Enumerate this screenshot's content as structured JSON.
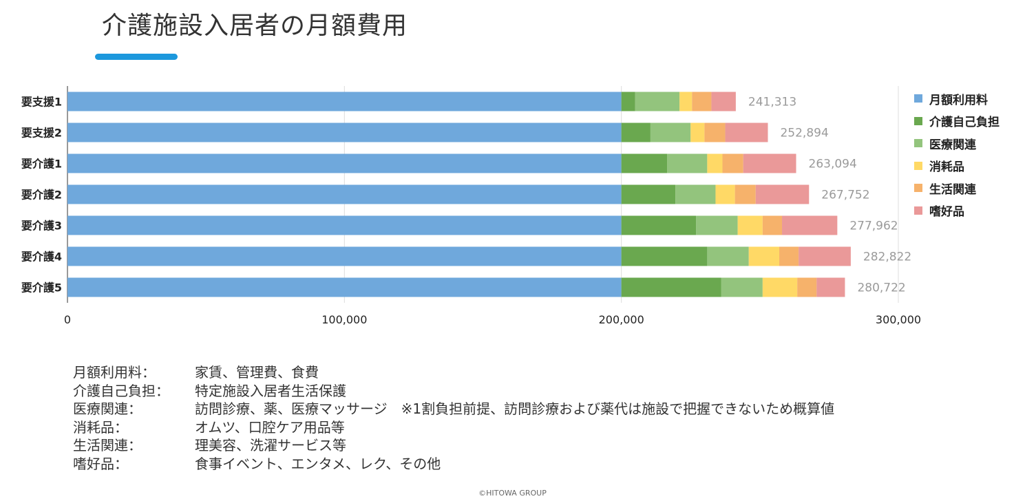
{
  "page": {
    "title": "介護施設入居者の月額費用",
    "copyright": "©HITOWA GROUP"
  },
  "chart_data": {
    "type": "bar",
    "orientation": "horizontal",
    "stacked": true,
    "categories": [
      "要支援1",
      "要支援2",
      "要介護1",
      "要介護2",
      "要介護3",
      "要介護4",
      "要介護5"
    ],
    "series": [
      {
        "name": "月額利用料",
        "color": "#6fa8dc",
        "values": [
          200000,
          200000,
          200000,
          200000,
          200000,
          200000,
          200000
        ]
      },
      {
        "name": "介護自己負担",
        "color": "#6aa84f",
        "values": [
          5000,
          10500,
          16500,
          19500,
          27000,
          31000,
          36000
        ]
      },
      {
        "name": "医療関連",
        "color": "#93c47d",
        "values": [
          16000,
          14500,
          14500,
          14500,
          15000,
          15000,
          15000
        ]
      },
      {
        "name": "消耗品",
        "color": "#ffd966",
        "values": [
          4500,
          5000,
          5500,
          7000,
          9000,
          11000,
          12500
        ]
      },
      {
        "name": "生活関連",
        "color": "#f6b26b",
        "values": [
          7000,
          7500,
          7500,
          7500,
          7000,
          7000,
          7000
        ]
      },
      {
        "name": "嗜好品",
        "color": "#ea9999",
        "values": [
          8813,
          15394,
          19094,
          19252,
          19962,
          18822,
          10222
        ]
      }
    ],
    "totals": [
      "241,313",
      "252,894",
      "263,094",
      "267,752",
      "277,962",
      "282,822",
      "280,722"
    ],
    "x_ticks": [
      0,
      100000,
      200000,
      300000
    ],
    "x_tick_labels": [
      "0",
      "100,000",
      "200,000",
      "300,000"
    ],
    "xlim": [
      0,
      300000
    ],
    "grid": true,
    "legend_position": "right"
  },
  "definitions": [
    {
      "term": "月額利用料：",
      "desc": "家賃、管理費、食費"
    },
    {
      "term": "介護自己負担：",
      "desc": "特定施設入居者生活保護"
    },
    {
      "term": "医療関連：",
      "desc": "訪問診療、薬、医療マッサージ　※1割負担前提、訪問診療および薬代は施設で把握できないため概算値"
    },
    {
      "term": "消耗品：",
      "desc": "オムツ、口腔ケア用品等"
    },
    {
      "term": "生活関連：",
      "desc": "理美容、洗濯サービス等"
    },
    {
      "term": "嗜好品：",
      "desc": "食事イベント、エンタメ、レク、その他"
    }
  ]
}
